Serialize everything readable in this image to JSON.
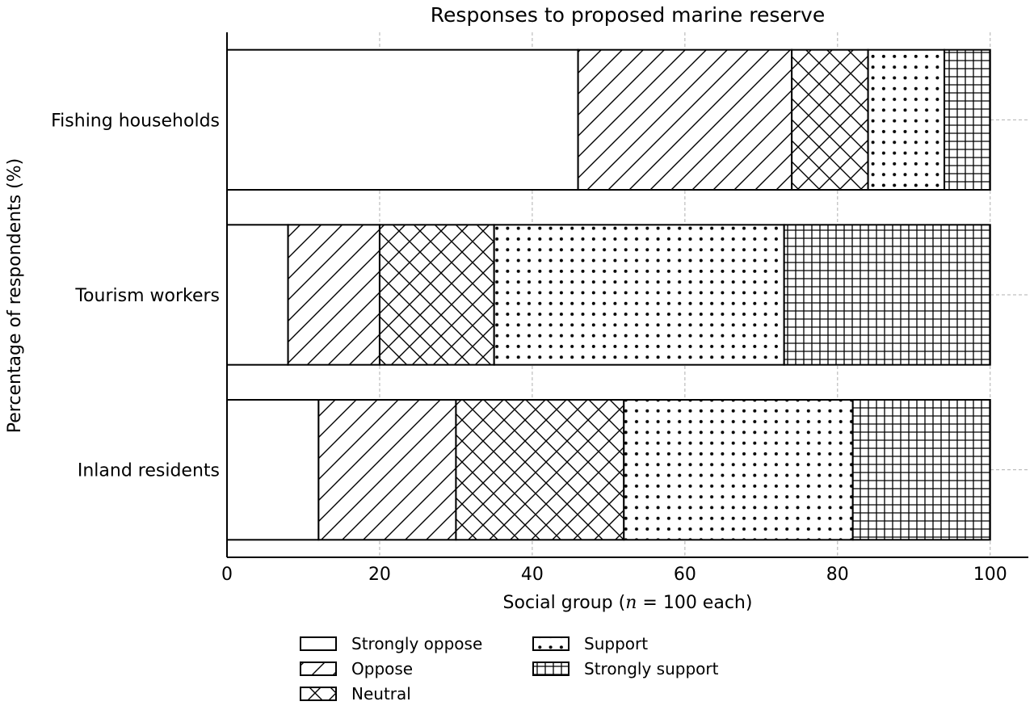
{
  "chart_data": {
    "type": "bar",
    "orientation": "horizontal",
    "stacked": true,
    "title": "Responses to proposed marine reserve",
    "xlabel_prefix": "Social group (",
    "xlabel_var": "n",
    "xlabel_suffix": " = 100 each)",
    "ylabel": "Percentage of respondents (%)",
    "xlim": [
      0,
      105
    ],
    "xticks": [
      0,
      20,
      40,
      60,
      80,
      100
    ],
    "grid": true,
    "legend_position": "bottom",
    "categories": [
      "Fishing households",
      "Tourism workers",
      "Inland residents"
    ],
    "series": [
      {
        "name": "Strongly oppose",
        "hatch": "none",
        "values": [
          46,
          8,
          12
        ]
      },
      {
        "name": "Oppose",
        "hatch": "diagonal",
        "values": [
          28,
          12,
          18
        ]
      },
      {
        "name": "Neutral",
        "hatch": "cross",
        "values": [
          10,
          15,
          22
        ]
      },
      {
        "name": "Support",
        "hatch": "dots",
        "values": [
          10,
          38,
          30
        ]
      },
      {
        "name": "Strongly support",
        "hatch": "grid",
        "values": [
          6,
          27,
          18
        ]
      }
    ]
  }
}
